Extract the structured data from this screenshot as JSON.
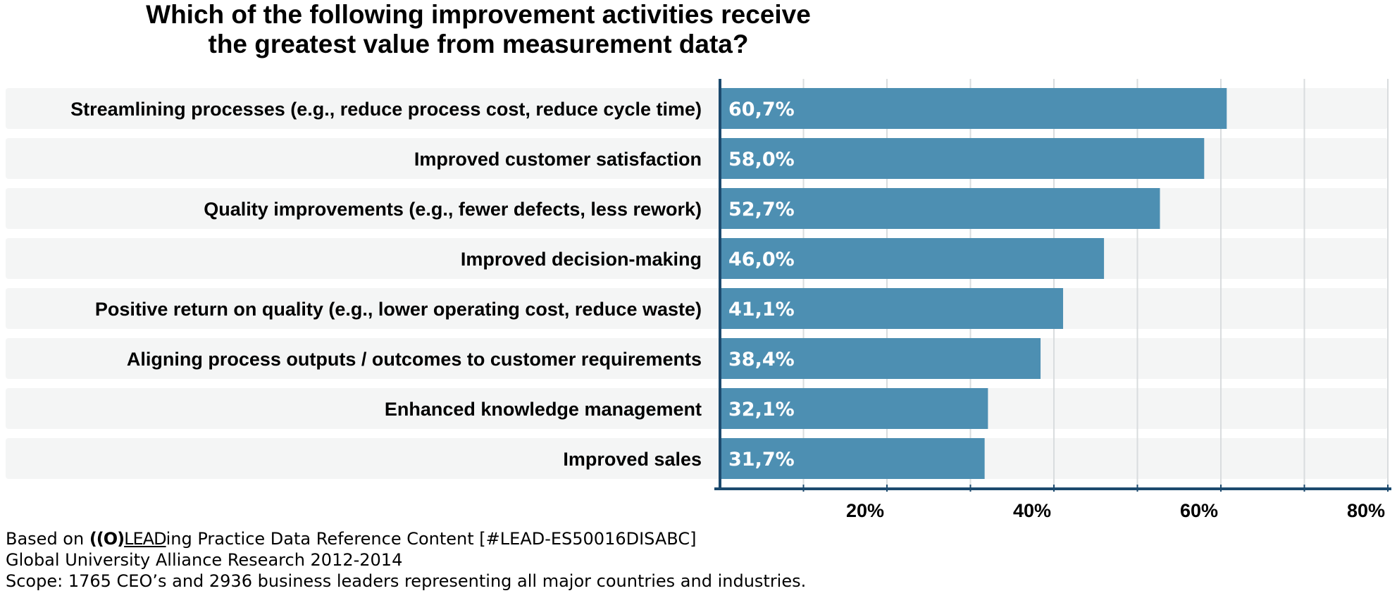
{
  "chart_data": {
    "type": "bar",
    "orientation": "horizontal",
    "title": "Which of the following improvement activities receive the greatest value from measurement data?",
    "title_lines": [
      "Which of the following improvement activities receive",
      "the greatest value from measurement data?"
    ],
    "categories": [
      "Streamlining processes (e.g., reduce process cost, reduce cycle time)",
      "Improved customer satisfaction",
      "Quality improvements (e.g., fewer defects, less rework)",
      "Improved decision-making",
      "Positive return on quality (e.g., lower operating cost, reduce waste)",
      "Aligning process outputs / outcomes to customer requirements",
      "Enhanced knowledge management",
      "Improved sales"
    ],
    "values": [
      60.7,
      58.0,
      52.7,
      46.0,
      41.1,
      38.4,
      32.1,
      31.7
    ],
    "value_labels": [
      "60,7%",
      "58,0%",
      "52,7%",
      "46,0%",
      "41,1%",
      "38,4%",
      "32,1%",
      "31,7%"
    ],
    "xlim": [
      0,
      80
    ],
    "xticks": [
      20,
      40,
      60,
      80
    ],
    "xtick_labels": [
      "20%",
      "40%",
      "60%",
      "80%"
    ],
    "grid": true,
    "legend": "none",
    "xlabel": "",
    "ylabel": "",
    "colors": {
      "bar": "#4d8fb2",
      "row_background": "#f4f5f5",
      "axis": "#1c4a6e",
      "grid": "#d9dcde"
    }
  },
  "footer": {
    "line1_prefix": "Based on ",
    "logo_mark": "((O)",
    "logo_rest": "LEAD",
    "line1_suffix": "ing Practice Data Reference Content [#LEAD-ES50016DISABC]",
    "line2": "Global University Alliance Research 2012-2014",
    "line3": "Scope: 1765 CEO’s and 2936 business leaders representing all major countries and industries."
  }
}
